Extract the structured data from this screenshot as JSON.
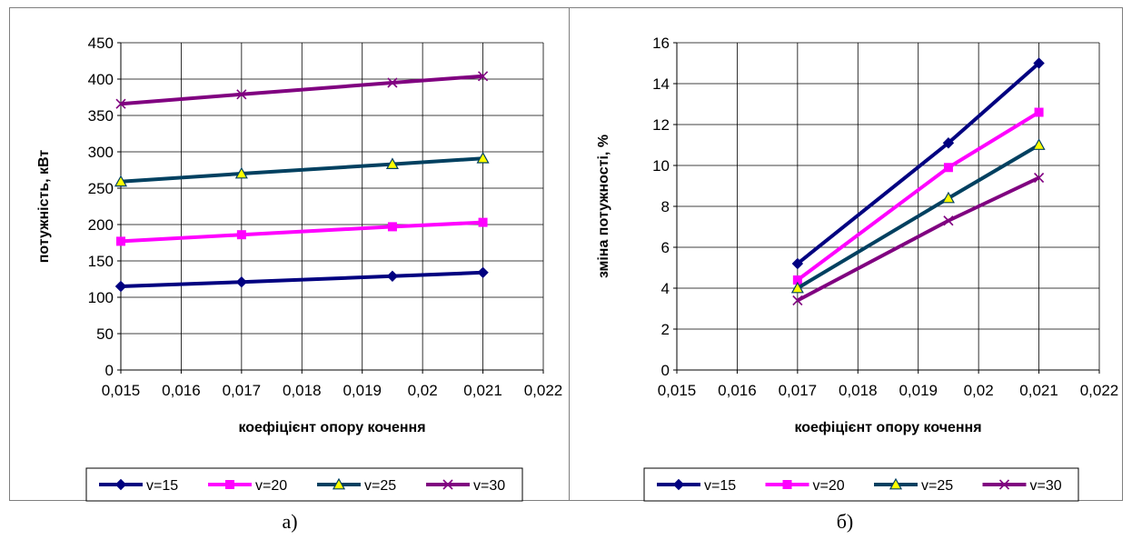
{
  "charts": [
    {
      "id": "a",
      "caption": "а)",
      "chart_data": {
        "type": "line",
        "xlabel": "коефіцієнт опору кочення",
        "ylabel": "потужність, кВт",
        "xlim": [
          0.015,
          0.022
        ],
        "ylim": [
          0,
          450
        ],
        "x_ticks": [
          "0,015",
          "0,016",
          "0,017",
          "0,018",
          "0,019",
          "0,02",
          "0,021",
          "0,022"
        ],
        "y_ticks": [
          "0",
          "50",
          "100",
          "150",
          "200",
          "250",
          "300",
          "350",
          "400",
          "450"
        ],
        "x_tick_values": [
          0.015,
          0.016,
          0.017,
          0.018,
          0.019,
          0.02,
          0.021,
          0.022
        ],
        "y_tick_values": [
          0,
          50,
          100,
          150,
          200,
          250,
          300,
          350,
          400,
          450
        ],
        "grid": true,
        "legend_position": "bottom",
        "x": [
          0.015,
          0.017,
          0.0195,
          0.021
        ],
        "series": [
          {
            "name": "v=15",
            "values": [
              115,
              121,
              129,
              134
            ],
            "color": "#000080",
            "marker": "diamond"
          },
          {
            "name": "v=20",
            "values": [
              177,
              186,
              197,
              203
            ],
            "color": "#ff00ff",
            "marker": "square"
          },
          {
            "name": "v=25",
            "values": [
              259,
              270,
              283,
              291
            ],
            "color": "#004060",
            "marker": "triangle"
          },
          {
            "name": "v=30",
            "values": [
              366,
              379,
              395,
              404
            ],
            "color": "#800080",
            "marker": "x"
          }
        ]
      }
    },
    {
      "id": "b",
      "caption": "б)",
      "chart_data": {
        "type": "line",
        "xlabel": "коефіцієнт опору кочення",
        "ylabel": "зміна потужності, %",
        "xlim": [
          0.015,
          0.022
        ],
        "ylim": [
          0,
          16
        ],
        "x_ticks": [
          "0,015",
          "0,016",
          "0,017",
          "0,018",
          "0,019",
          "0,02",
          "0,021",
          "0,022"
        ],
        "y_ticks": [
          "0",
          "2",
          "4",
          "6",
          "8",
          "10",
          "12",
          "14",
          "16"
        ],
        "x_tick_values": [
          0.015,
          0.016,
          0.017,
          0.018,
          0.019,
          0.02,
          0.021,
          0.022
        ],
        "y_tick_values": [
          0,
          2,
          4,
          6,
          8,
          10,
          12,
          14,
          16
        ],
        "grid": true,
        "legend_position": "bottom",
        "x": [
          0.017,
          0.0195,
          0.021
        ],
        "series": [
          {
            "name": "v=15",
            "values": [
              5.2,
              11.1,
              15.0
            ],
            "color": "#000080",
            "marker": "diamond"
          },
          {
            "name": "v=20",
            "values": [
              4.4,
              9.9,
              12.6
            ],
            "color": "#ff00ff",
            "marker": "square"
          },
          {
            "name": "v=25",
            "values": [
              4.0,
              8.4,
              11.0
            ],
            "color": "#004060",
            "marker": "triangle"
          },
          {
            "name": "v=30",
            "values": [
              3.4,
              7.3,
              9.4
            ],
            "color": "#800080",
            "marker": "x"
          }
        ]
      }
    }
  ]
}
